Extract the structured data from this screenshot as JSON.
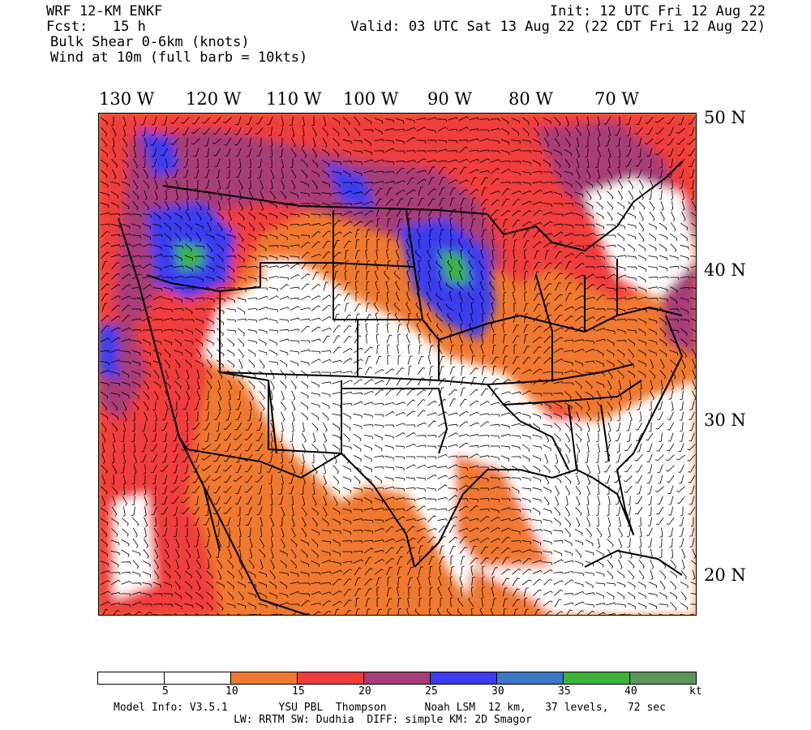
{
  "header": {
    "model": "WRF 12-KM ENKF",
    "fcst": "Fcst:   15 h",
    "field1": "Bulk Shear 0-6km (knots)",
    "field2": "Wind at 10m (full barb = 10kts)",
    "init": "Init: 12 UTC Fri 12 Aug 22",
    "valid": "Valid: 03 UTC Sat 13 Aug 22 (22 CDT Fri 12 Aug 22)"
  },
  "longitudes": [
    "130 W",
    "120 W",
    "110 W",
    "100 W",
    "90 W",
    "80 W",
    "70 W"
  ],
  "latitudes": [
    "50 N",
    "40 N",
    "30 N",
    "20 N"
  ],
  "legend": {
    "colors": [
      "#ffffff",
      "#ffffff",
      "#f07830",
      "#f03c3c",
      "#a83c78",
      "#3c3cf0",
      "#3c78c8",
      "#3cb43c",
      "#5a965a"
    ],
    "ticks": [
      "5",
      "10",
      "15",
      "20",
      "25",
      "30",
      "35",
      "40",
      "kt"
    ]
  },
  "footer": {
    "line1": "Model Info: V3.5.1        YSU PBL  Thompson      Noah LSM  12 km,   37 levels,   72 sec",
    "line2": "LW: RRTM SW: Dudhia  DIFF: simple KM: 2D Smagor"
  }
}
